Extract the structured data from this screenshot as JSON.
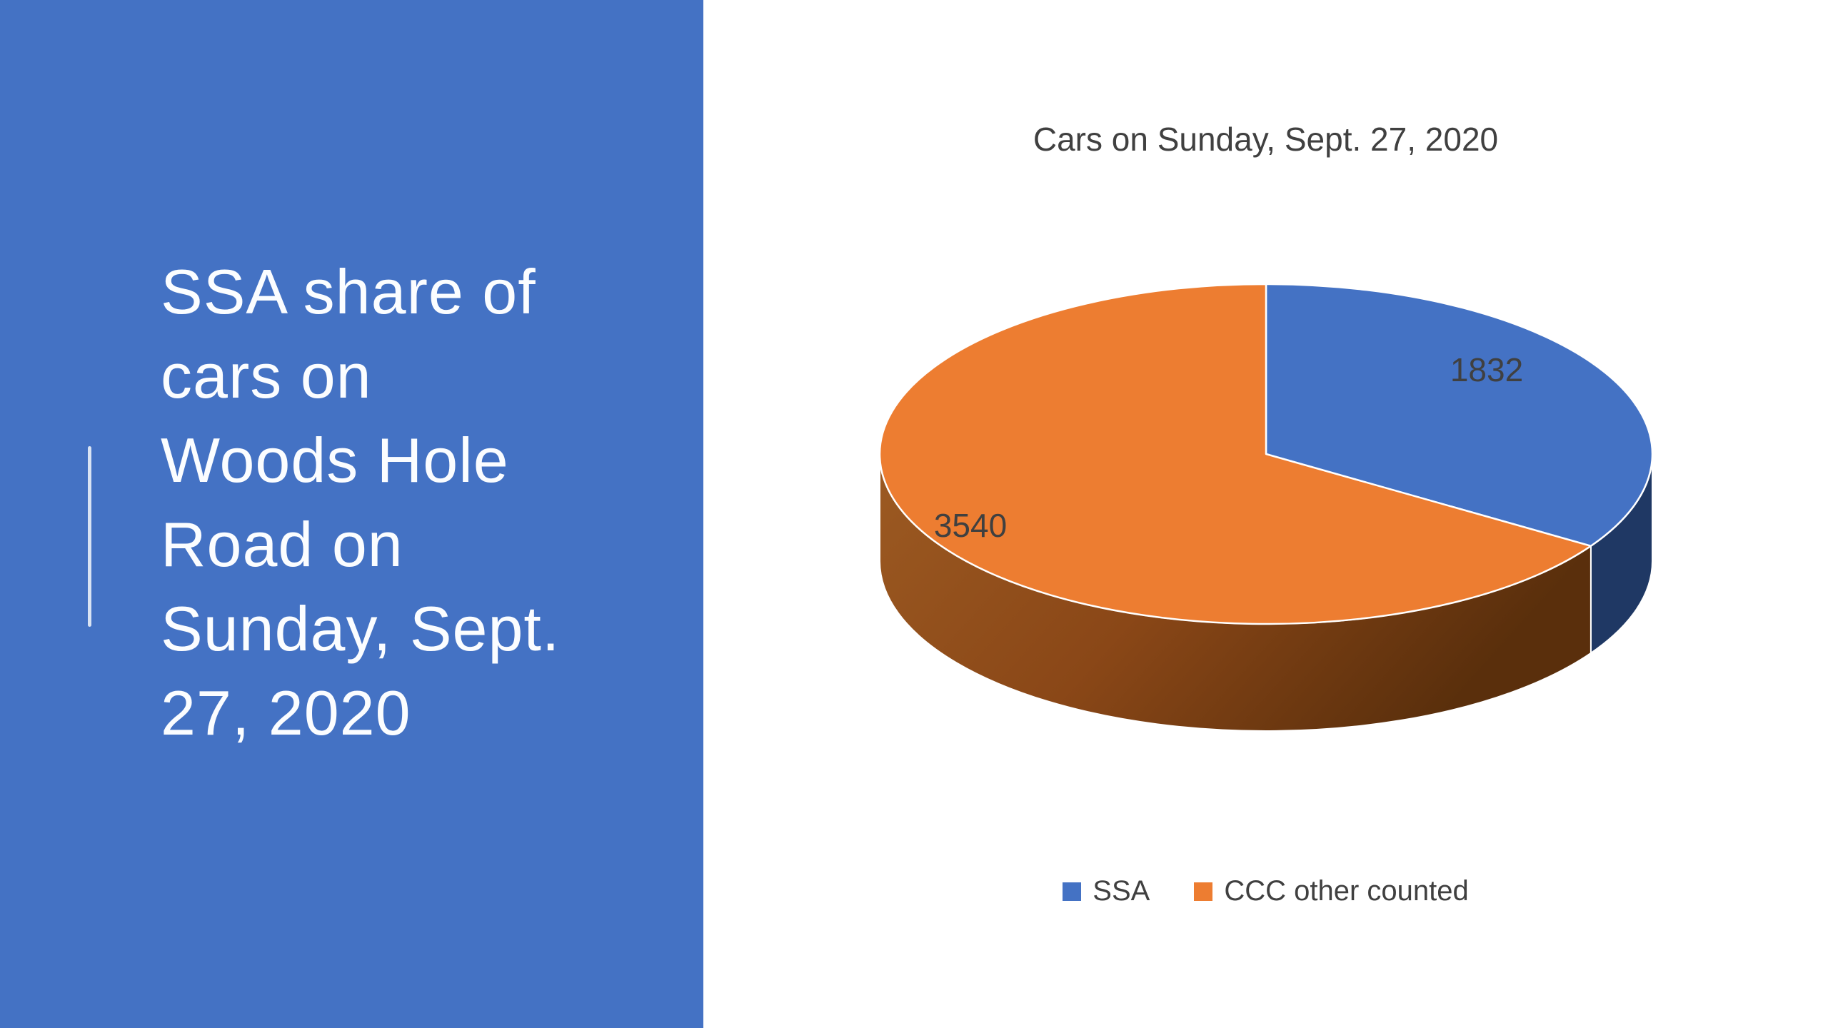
{
  "slide": {
    "panel_color": "#4472C4",
    "background_color": "#FFFFFF",
    "title": {
      "text": "SSA share of cars on Woods Hole Road on Sunday, Sept. 27, 2020",
      "lines": [
        "SSA share of",
        "cars on",
        "Woods Hole",
        "Road on",
        "Sunday, Sept.",
        "27, 2020"
      ],
      "color": "#FBFDFF"
    }
  },
  "chart_data": {
    "type": "pie",
    "style": "3d",
    "title": "Cars on Sunday, Sept. 27, 2020",
    "title_color": "#404040",
    "categories": [
      "SSA",
      "CCC other counted"
    ],
    "values": [
      1832,
      3540
    ],
    "data_labels": [
      "1832",
      "3540"
    ],
    "colors": [
      "#4472C4",
      "#ED7D31"
    ],
    "side_colors": [
      "#1F3864",
      "#8A4717"
    ],
    "side_gradient": [
      "#9C5A22",
      "#8A4717",
      "#5A2F0C"
    ],
    "separator_color": "#FFFFFF",
    "label_color": "#404040",
    "start_angle": "12 o'clock, clockwise",
    "legend": {
      "position": "bottom-center",
      "entries": [
        {
          "label": "SSA",
          "color": "#4472C4"
        },
        {
          "label": "CCC other counted",
          "color": "#ED7D31"
        }
      ]
    }
  }
}
